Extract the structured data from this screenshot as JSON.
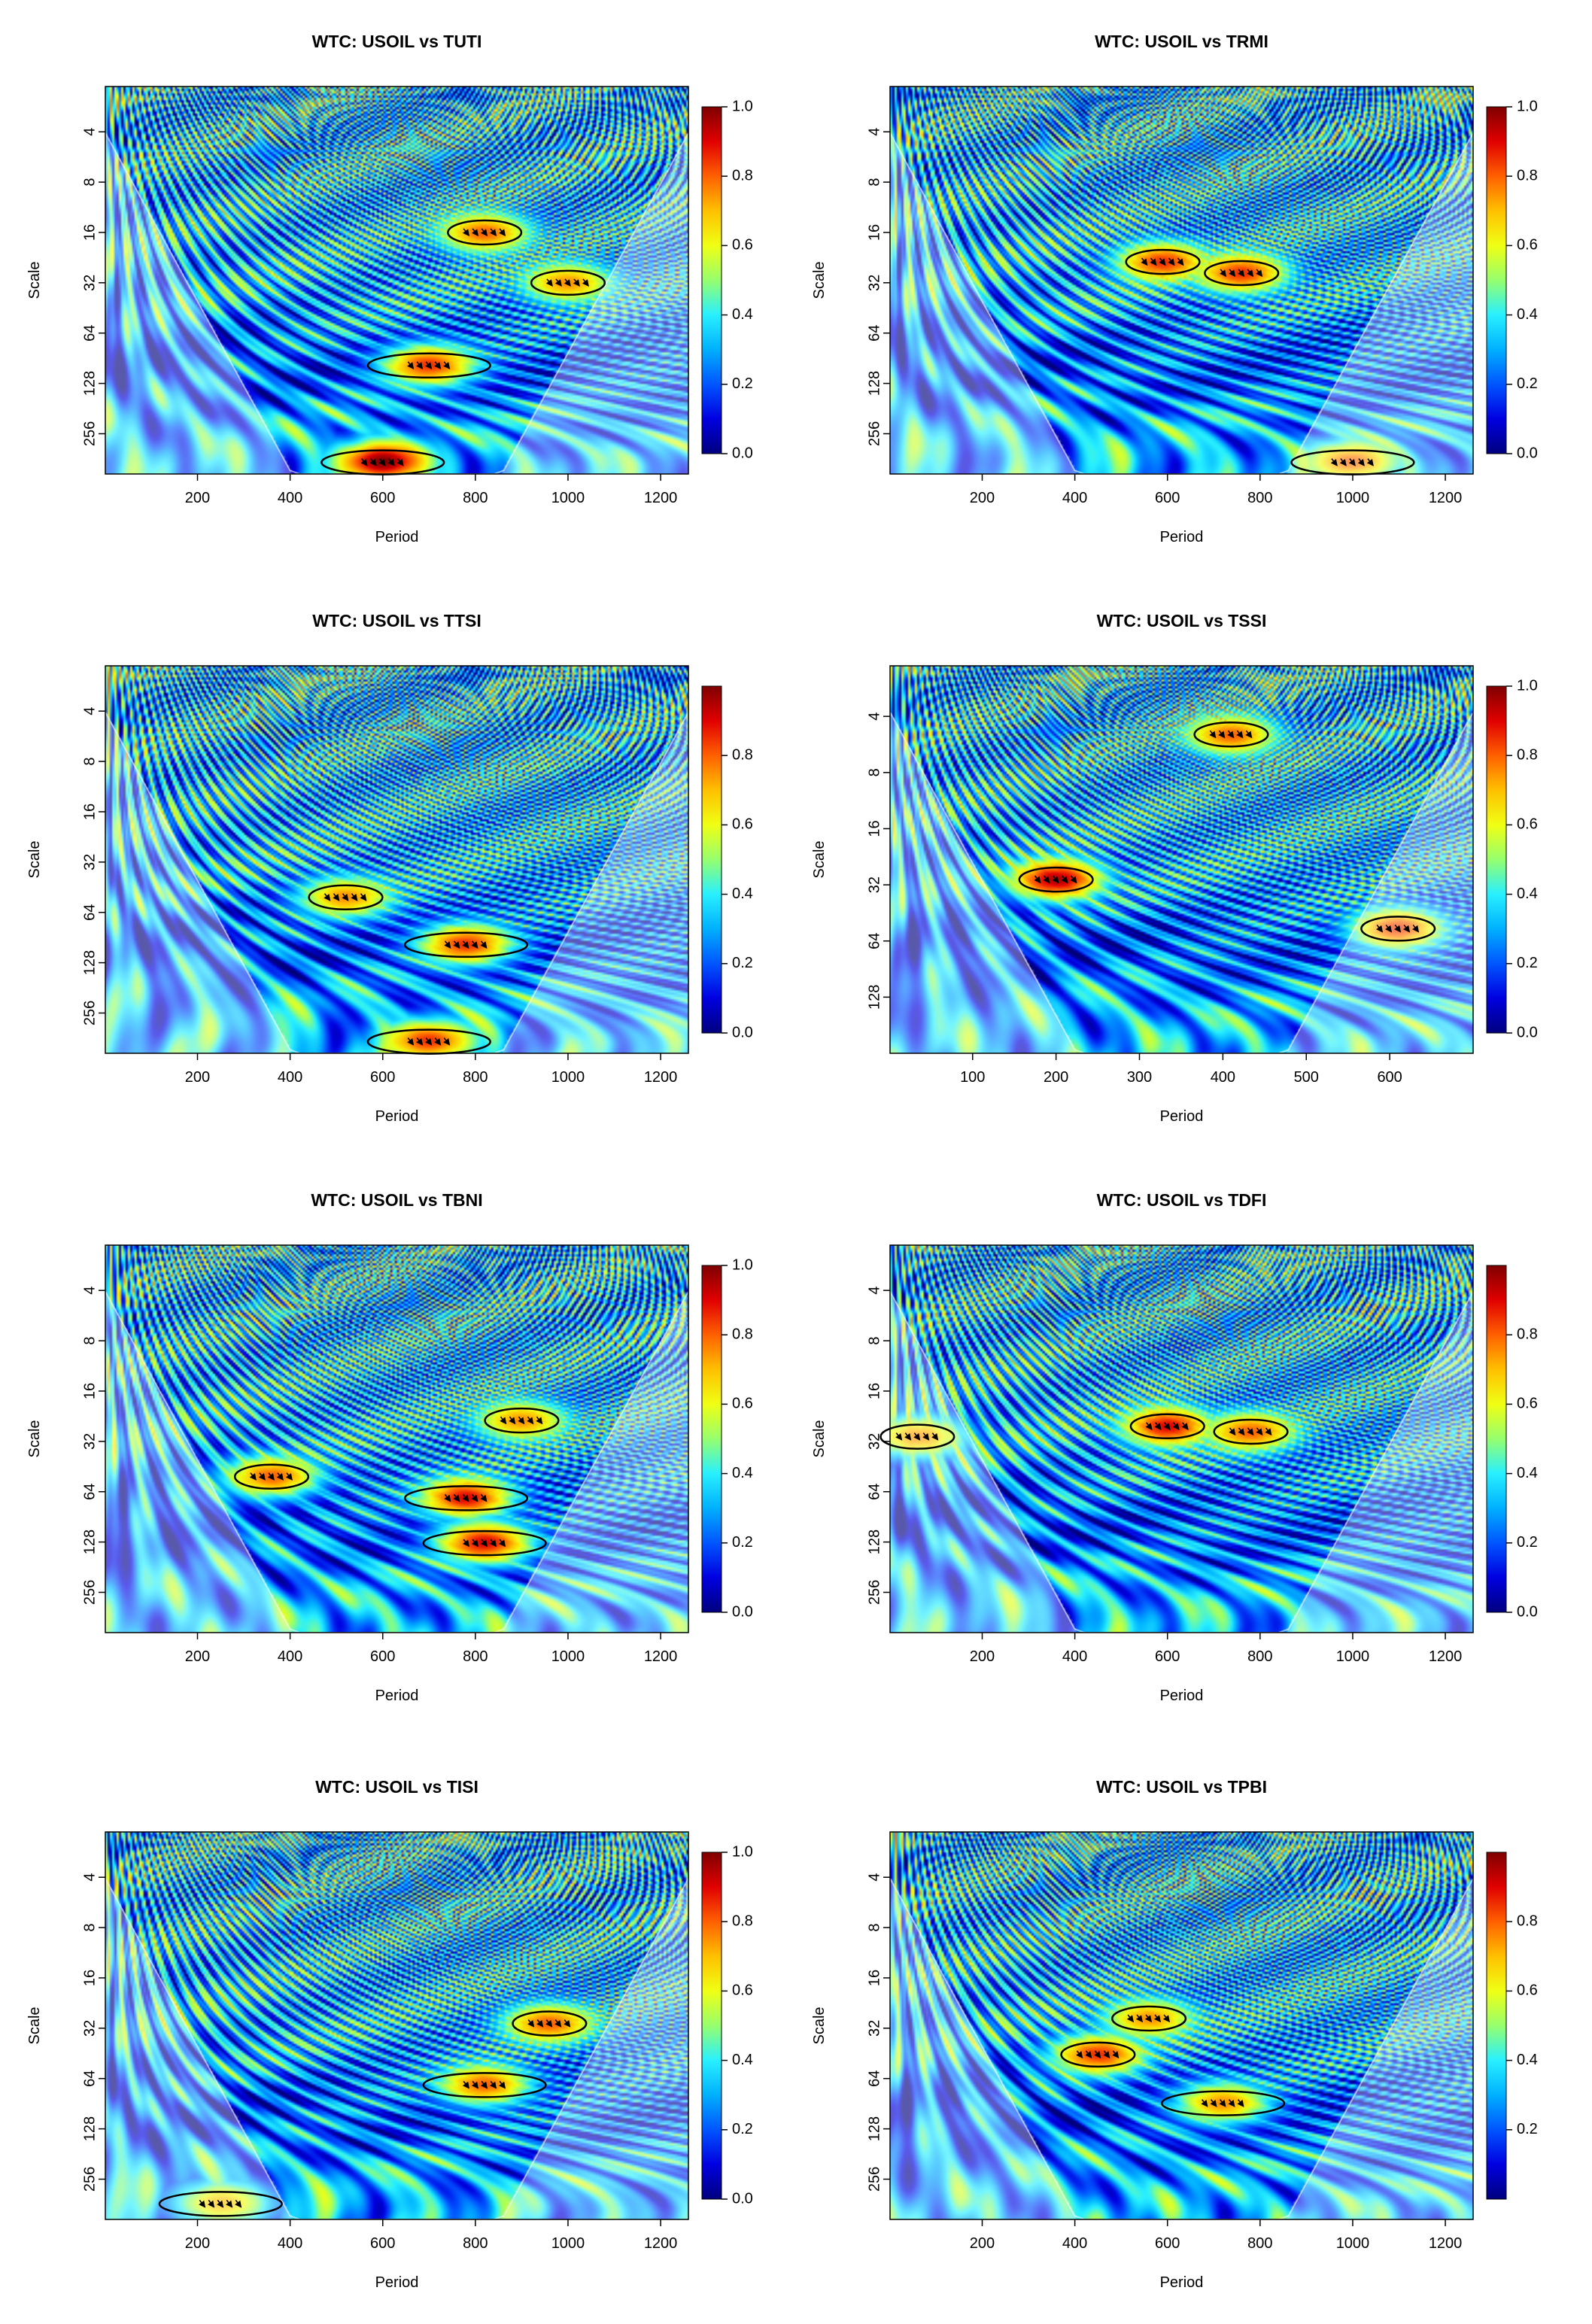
{
  "figure": {
    "label": "Wavelet coherence panels"
  },
  "colors": {
    "colormap": [
      "#00007f",
      "#0000e0",
      "#0055ff",
      "#00b0ff",
      "#28f0ff",
      "#96ff6e",
      "#f0ff14",
      "#ffc000",
      "#ff6000",
      "#e00000",
      "#7f0000"
    ],
    "outside_coi_tint": "#ffffff",
    "contour": "#000000",
    "arrow": "#000000"
  },
  "chart_data": [
    {
      "type": "heatmap",
      "title": "WTC: USOIL vs TUTI",
      "xlabel": "Period",
      "ylabel": "Scale",
      "xlim": [
        1,
        1260
      ],
      "xticks": [
        "200",
        "400",
        "600",
        "800",
        "1000",
        "1200"
      ],
      "xtick_values": [
        200,
        400,
        600,
        800,
        1000,
        1200
      ],
      "yticks": [
        "4",
        "8",
        "16",
        "32",
        "64",
        "128",
        "256"
      ],
      "ytick_values": [
        4,
        8,
        16,
        32,
        64,
        128,
        256
      ],
      "ylim_log2": [
        1.1,
        8.8
      ],
      "colorbar_ticks": [
        "0.0",
        "0.2",
        "0.4",
        "0.6",
        "0.8",
        "1.0"
      ],
      "colorbar_values": [
        0,
        0.2,
        0.4,
        0.6,
        0.8,
        1.0
      ],
      "colorbar_max": 1.0,
      "significant_regions": [
        {
          "x": 700,
          "scale": 100,
          "coherence": 0.85
        },
        {
          "x": 600,
          "scale": 380,
          "coherence": 1.0
        },
        {
          "x": 820,
          "scale": 16,
          "coherence": 0.8
        },
        {
          "x": 1000,
          "scale": 32,
          "coherence": 0.75
        }
      ],
      "seed": 11
    },
    {
      "type": "heatmap",
      "title": "WTC: USOIL vs TRMI",
      "xlabel": "Period",
      "ylabel": "Scale",
      "xlim": [
        1,
        1260
      ],
      "xticks": [
        "200",
        "400",
        "600",
        "800",
        "1000",
        "1200"
      ],
      "xtick_values": [
        200,
        400,
        600,
        800,
        1000,
        1200
      ],
      "yticks": [
        "4",
        "8",
        "16",
        "32",
        "64",
        "128",
        "256"
      ],
      "ytick_values": [
        4,
        8,
        16,
        32,
        64,
        128,
        256
      ],
      "ylim_log2": [
        1.1,
        8.8
      ],
      "colorbar_ticks": [
        "0.0",
        "0.2",
        "0.4",
        "0.6",
        "0.8",
        "1.0"
      ],
      "colorbar_values": [
        0,
        0.2,
        0.4,
        0.6,
        0.8,
        1.0
      ],
      "colorbar_max": 1.0,
      "significant_regions": [
        {
          "x": 590,
          "scale": 24,
          "coherence": 0.85
        },
        {
          "x": 760,
          "scale": 28,
          "coherence": 0.85
        },
        {
          "x": 1000,
          "scale": 380,
          "coherence": 0.8
        }
      ],
      "seed": 23
    },
    {
      "type": "heatmap",
      "title": "WTC: USOIL vs TTSI",
      "xlabel": "Period",
      "ylabel": "Scale",
      "xlim": [
        1,
        1260
      ],
      "xticks": [
        "200",
        "400",
        "600",
        "800",
        "1000",
        "1200"
      ],
      "xtick_values": [
        200,
        400,
        600,
        800,
        1000,
        1200
      ],
      "yticks": [
        "4",
        "8",
        "16",
        "32",
        "64",
        "128",
        "256"
      ],
      "ytick_values": [
        4,
        8,
        16,
        32,
        64,
        128,
        256
      ],
      "ylim_log2": [
        1.1,
        8.8
      ],
      "colorbar_ticks": [
        "0.0",
        "0.2",
        "0.4",
        "0.6",
        "0.8"
      ],
      "colorbar_values": [
        0,
        0.2,
        0.4,
        0.6,
        0.8
      ],
      "colorbar_max": 1.0,
      "significant_regions": [
        {
          "x": 780,
          "scale": 100,
          "coherence": 0.85
        },
        {
          "x": 520,
          "scale": 52,
          "coherence": 0.75
        },
        {
          "x": 700,
          "scale": 380,
          "coherence": 0.85
        }
      ],
      "seed": 37
    },
    {
      "type": "heatmap",
      "title": "WTC: USOIL vs TSSI",
      "xlabel": "Period",
      "ylabel": "Scale",
      "xlim": [
        1,
        700
      ],
      "xticks": [
        "100",
        "200",
        "300",
        "400",
        "500",
        "600"
      ],
      "xtick_values": [
        100,
        200,
        300,
        400,
        500,
        600
      ],
      "yticks": [
        "4",
        "8",
        "16",
        "32",
        "64",
        "128"
      ],
      "ytick_values": [
        4,
        8,
        16,
        32,
        64,
        128
      ],
      "ylim_log2": [
        1.1,
        8.0
      ],
      "colorbar_ticks": [
        "0.0",
        "0.2",
        "0.4",
        "0.6",
        "0.8",
        "1.0"
      ],
      "colorbar_values": [
        0,
        0.2,
        0.4,
        0.6,
        0.8,
        1.0
      ],
      "colorbar_max": 1.0,
      "significant_regions": [
        {
          "x": 200,
          "scale": 30,
          "coherence": 0.95
        },
        {
          "x": 610,
          "scale": 55,
          "coherence": 0.85
        },
        {
          "x": 410,
          "scale": 5,
          "coherence": 0.8
        }
      ],
      "seed": 41
    },
    {
      "type": "heatmap",
      "title": "WTC: USOIL vs TBNI",
      "xlabel": "Period",
      "ylabel": "Scale",
      "xlim": [
        1,
        1260
      ],
      "xticks": [
        "200",
        "400",
        "600",
        "800",
        "1000",
        "1200"
      ],
      "xtick_values": [
        200,
        400,
        600,
        800,
        1000,
        1200
      ],
      "yticks": [
        "4",
        "8",
        "16",
        "32",
        "64",
        "128",
        "256"
      ],
      "ytick_values": [
        4,
        8,
        16,
        32,
        64,
        128,
        256
      ],
      "ylim_log2": [
        1.1,
        8.8
      ],
      "colorbar_ticks": [
        "0.0",
        "0.2",
        "0.4",
        "0.6",
        "0.8",
        "1.0"
      ],
      "colorbar_values": [
        0,
        0.2,
        0.4,
        0.6,
        0.8,
        1.0
      ],
      "colorbar_max": 1.0,
      "significant_regions": [
        {
          "x": 780,
          "scale": 70,
          "coherence": 0.9
        },
        {
          "x": 820,
          "scale": 130,
          "coherence": 0.9
        },
        {
          "x": 360,
          "scale": 52,
          "coherence": 0.8
        },
        {
          "x": 900,
          "scale": 24,
          "coherence": 0.75
        }
      ],
      "seed": 53
    },
    {
      "type": "heatmap",
      "title": "WTC: USOIL vs TDFI",
      "xlabel": "Period",
      "ylabel": "Scale",
      "xlim": [
        1,
        1260
      ],
      "xticks": [
        "200",
        "400",
        "600",
        "800",
        "1000",
        "1200"
      ],
      "xtick_values": [
        200,
        400,
        600,
        800,
        1000,
        1200
      ],
      "yticks": [
        "4",
        "8",
        "16",
        "32",
        "64",
        "128",
        "256"
      ],
      "ytick_values": [
        4,
        8,
        16,
        32,
        64,
        128,
        256
      ],
      "ylim_log2": [
        1.1,
        8.8
      ],
      "colorbar_ticks": [
        "0.0",
        "0.2",
        "0.4",
        "0.6",
        "0.8"
      ],
      "colorbar_values": [
        0,
        0.2,
        0.4,
        0.6,
        0.8
      ],
      "colorbar_max": 1.0,
      "significant_regions": [
        {
          "x": 600,
          "scale": 26,
          "coherence": 0.9
        },
        {
          "x": 780,
          "scale": 28,
          "coherence": 0.8
        },
        {
          "x": 60,
          "scale": 30,
          "coherence": 0.75
        }
      ],
      "seed": 67
    },
    {
      "type": "heatmap",
      "title": "WTC: USOIL vs TISI",
      "xlabel": "Period",
      "ylabel": "Scale",
      "xlim": [
        1,
        1260
      ],
      "xticks": [
        "200",
        "400",
        "600",
        "800",
        "1000",
        "1200"
      ],
      "xtick_values": [
        200,
        400,
        600,
        800,
        1000,
        1200
      ],
      "yticks": [
        "4",
        "8",
        "16",
        "32",
        "64",
        "128",
        "256"
      ],
      "ytick_values": [
        4,
        8,
        16,
        32,
        64,
        128,
        256
      ],
      "ylim_log2": [
        1.1,
        8.8
      ],
      "colorbar_ticks": [
        "0.0",
        "0.2",
        "0.4",
        "0.6",
        "0.8",
        "1.0"
      ],
      "colorbar_values": [
        0,
        0.2,
        0.4,
        0.6,
        0.8,
        1.0
      ],
      "colorbar_max": 1.0,
      "significant_regions": [
        {
          "x": 820,
          "scale": 70,
          "coherence": 0.8
        },
        {
          "x": 960,
          "scale": 30,
          "coherence": 0.8
        },
        {
          "x": 250,
          "scale": 360,
          "coherence": 0.7
        }
      ],
      "seed": 79
    },
    {
      "type": "heatmap",
      "title": "WTC: USOIL vs TPBI",
      "xlabel": "Period",
      "ylabel": "Scale",
      "xlim": [
        1,
        1260
      ],
      "xticks": [
        "200",
        "400",
        "600",
        "800",
        "1000",
        "1200"
      ],
      "xtick_values": [
        200,
        400,
        600,
        800,
        1000,
        1200
      ],
      "yticks": [
        "4",
        "8",
        "16",
        "32",
        "64",
        "128",
        "256"
      ],
      "ytick_values": [
        4,
        8,
        16,
        32,
        64,
        128,
        256
      ],
      "ylim_log2": [
        1.1,
        8.8
      ],
      "colorbar_ticks": [
        "0.2",
        "0.4",
        "0.6",
        "0.8"
      ],
      "colorbar_values": [
        0.2,
        0.4,
        0.6,
        0.8
      ],
      "colorbar_max": 1.0,
      "significant_regions": [
        {
          "x": 450,
          "scale": 46,
          "coherence": 0.85
        },
        {
          "x": 720,
          "scale": 90,
          "coherence": 0.75
        },
        {
          "x": 560,
          "scale": 28,
          "coherence": 0.75
        }
      ],
      "seed": 97
    }
  ]
}
